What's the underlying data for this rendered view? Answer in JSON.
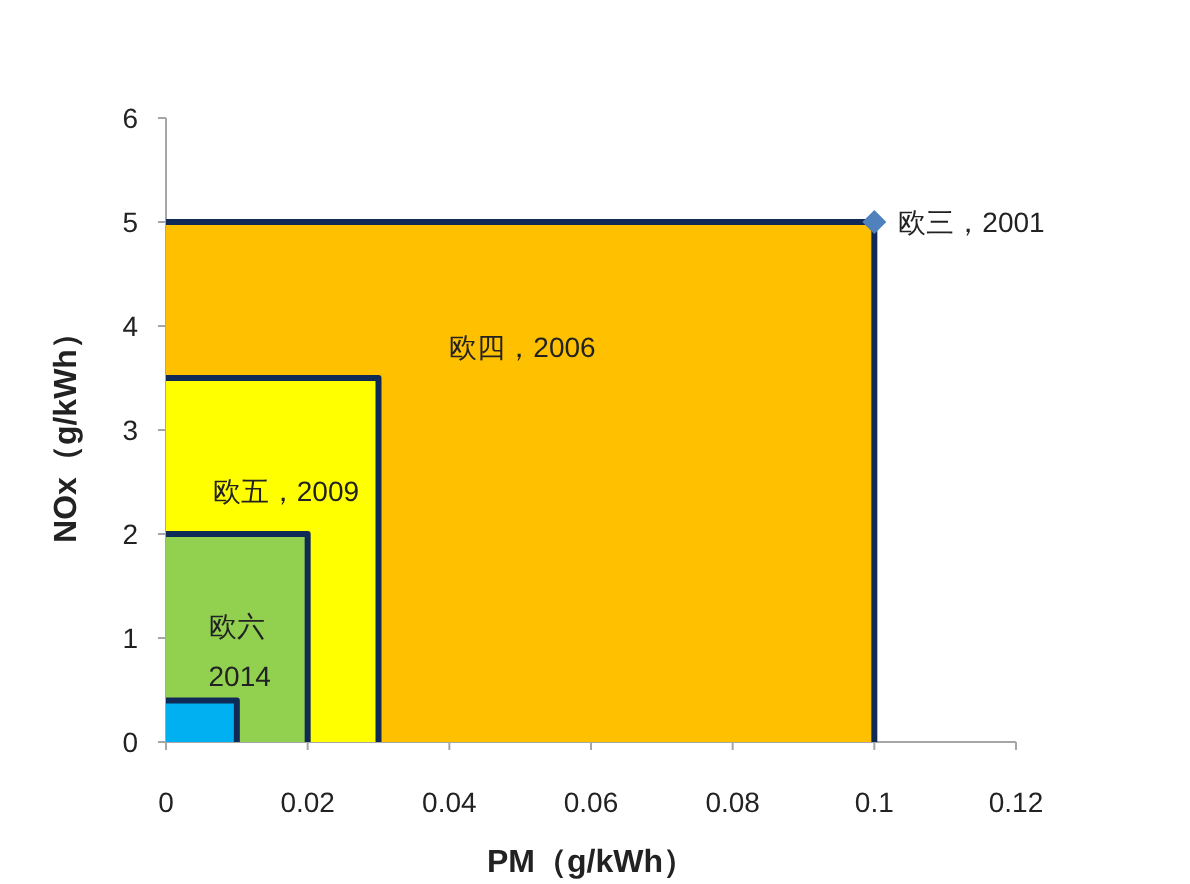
{
  "chart_data": {
    "type": "area",
    "xlabel": "PM（g/kWh）",
    "ylabel": "NOx（g/kWh）",
    "xlim": [
      0,
      0.12
    ],
    "ylim": [
      0,
      6
    ],
    "xticks": [
      0,
      0.02,
      0.04,
      0.06,
      0.08,
      0.1,
      0.12
    ],
    "yticks": [
      0,
      1,
      2,
      3,
      4,
      5,
      6
    ],
    "grid": false,
    "legend": false,
    "series": [
      {
        "name": "欧四，2006",
        "color": "#ffc000",
        "x": [
          0,
          0.1,
          0.1
        ],
        "values": [
          5,
          5,
          0
        ]
      },
      {
        "name": "欧五，2009",
        "color": "#ffff00",
        "x": [
          0,
          0.03,
          0.03
        ],
        "values": [
          3.5,
          3.5,
          0
        ]
      },
      {
        "name": "欧六\n2014",
        "color": "#92d050",
        "x": [
          0,
          0.02,
          0.02
        ],
        "values": [
          2,
          2,
          0
        ]
      },
      {
        "color": "#00b0f0",
        "x": [
          0,
          0.01,
          0.01
        ],
        "values": [
          0.4,
          0.4,
          0
        ]
      },
      {
        "type": "scatter",
        "name": "欧三，2001",
        "color": "#4f81bd",
        "marker": "diamond",
        "x": [
          0.1
        ],
        "values": [
          5
        ]
      }
    ]
  }
}
